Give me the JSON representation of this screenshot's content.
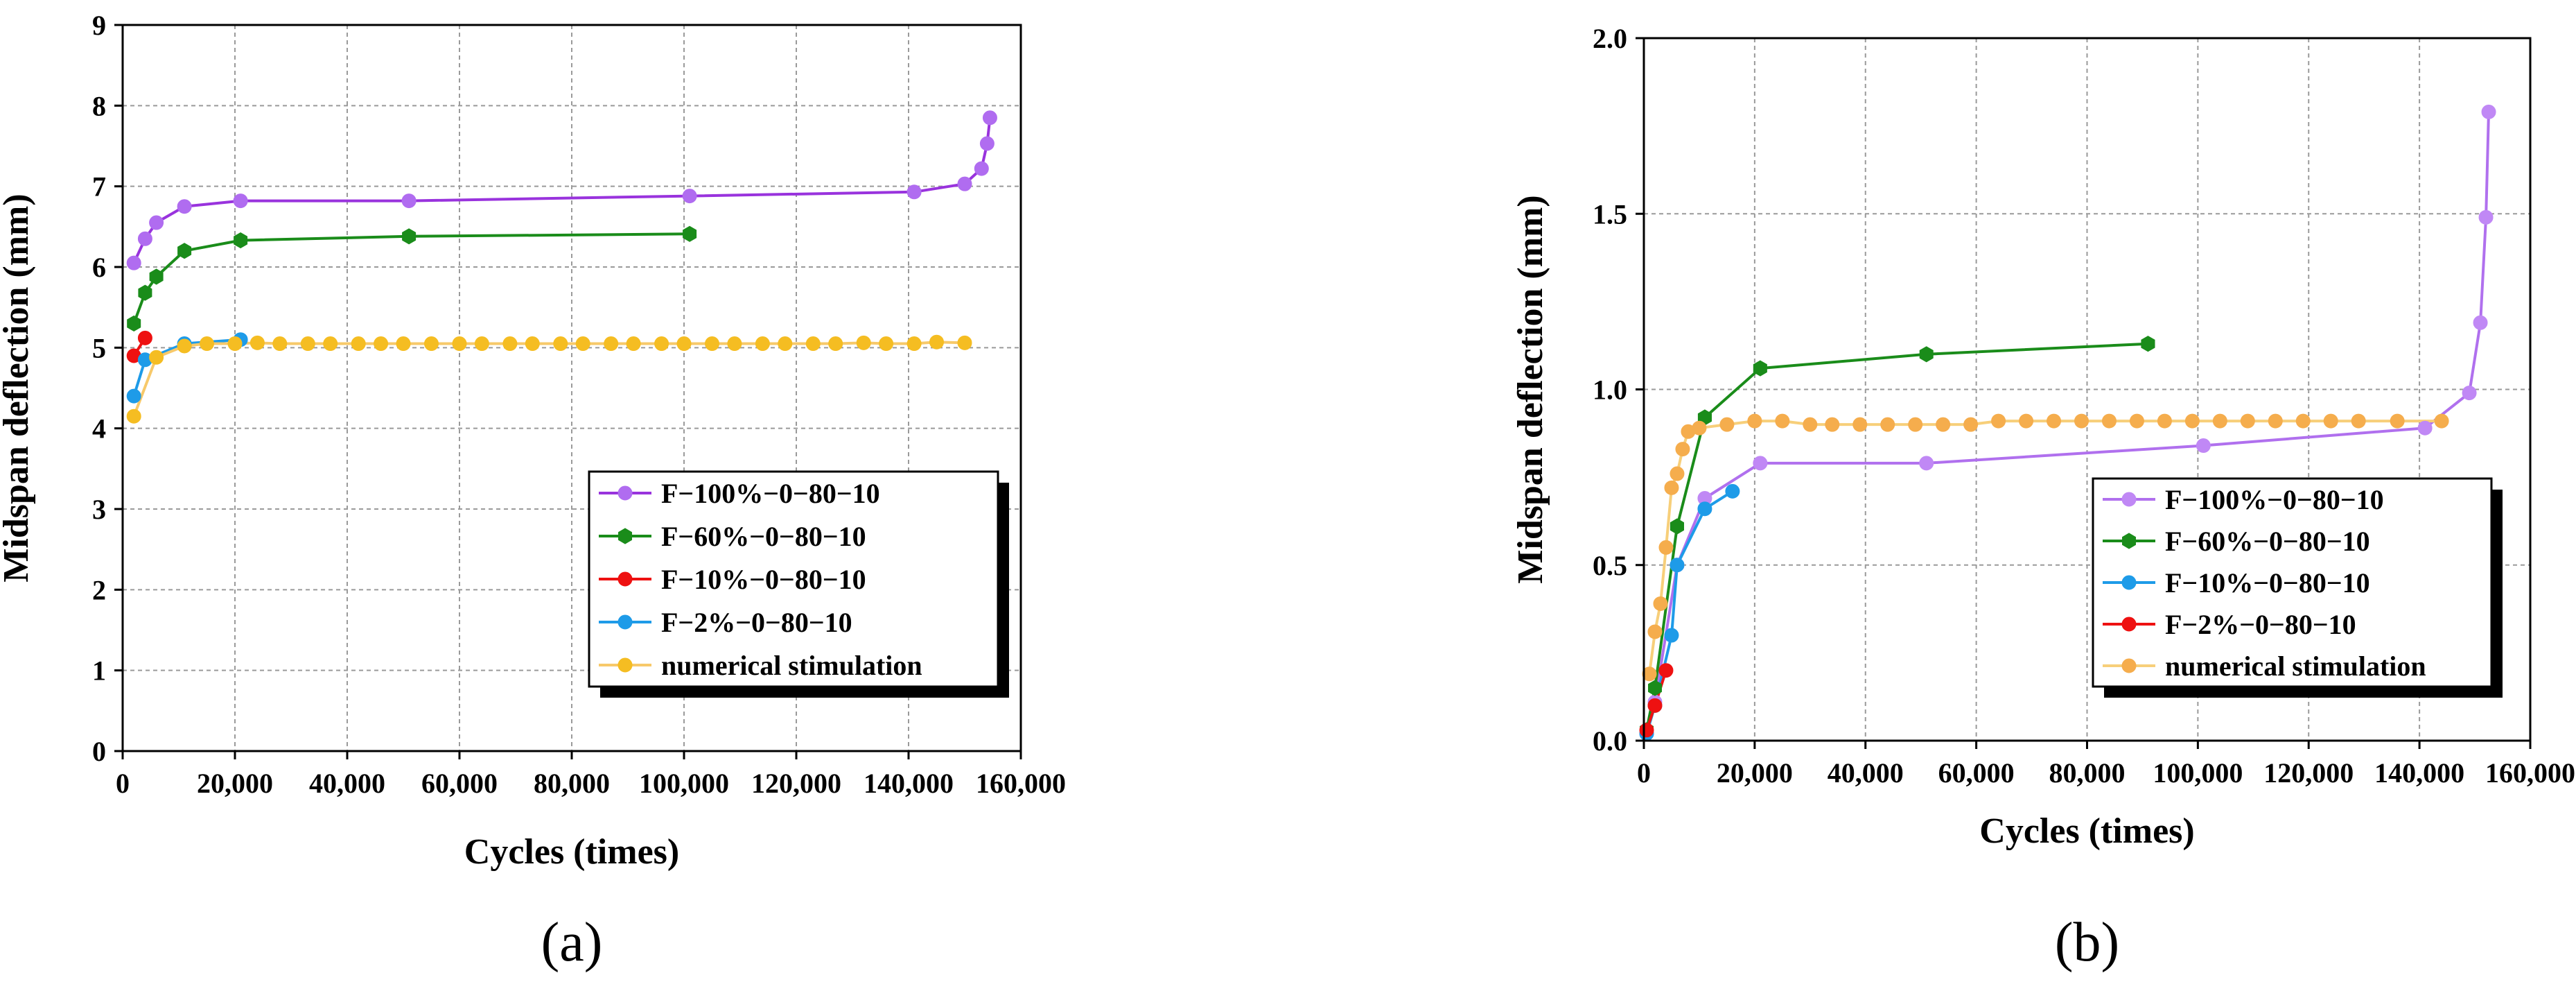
{
  "chart_data": [
    {
      "panel": "a",
      "panel_label": "(a)",
      "type": "line",
      "xlabel": "Cycles (times)",
      "ylabel": "Midspan deflection (mm)",
      "xlim": [
        0,
        160000
      ],
      "ylim": [
        0,
        9
      ],
      "xticks": [
        0,
        20000,
        40000,
        60000,
        80000,
        100000,
        120000,
        140000,
        160000
      ],
      "xtick_labels": [
        "0",
        "20,000",
        "40,000",
        "60,000",
        "80,000",
        "100,000",
        "120,000",
        "140,000",
        "160,000"
      ],
      "yticks": [
        0,
        1,
        2,
        3,
        4,
        5,
        6,
        7,
        8,
        9
      ],
      "ytick_labels": [
        "0",
        "1",
        "2",
        "3",
        "4",
        "5",
        "6",
        "7",
        "8",
        "9"
      ],
      "grid": true,
      "legend_position": "lower-right",
      "series": [
        {
          "name": "F−100%−0−80−10",
          "color": "#b06cf0",
          "line": "#9933dd",
          "marker": "circle",
          "x": [
            2000,
            4000,
            6000,
            11000,
            21000,
            51000,
            101000,
            141000,
            150000,
            153000,
            154000,
            154500
          ],
          "y": [
            6.05,
            6.35,
            6.55,
            6.75,
            6.82,
            6.82,
            6.88,
            6.93,
            7.03,
            7.22,
            7.53,
            7.85
          ]
        },
        {
          "name": "F−60%−0−80−10",
          "color": "#1a8c1a",
          "line": "#1a8c1a",
          "marker": "hexagon",
          "x": [
            2000,
            4000,
            6000,
            11000,
            21000,
            51000,
            101000
          ],
          "y": [
            5.3,
            5.68,
            5.88,
            6.2,
            6.33,
            6.38,
            6.41
          ]
        },
        {
          "name": "F−10%−0−80−10",
          "color": "#ee1111",
          "line": "#ee1111",
          "marker": "circle",
          "x": [
            2000,
            4000
          ],
          "y": [
            4.9,
            5.12
          ]
        },
        {
          "name": "F−2%−0−80−10",
          "color": "#1e9be8",
          "line": "#1e9be8",
          "marker": "circle",
          "x": [
            2000,
            4000,
            11000,
            21000
          ],
          "y": [
            4.4,
            4.85,
            5.05,
            5.1
          ]
        },
        {
          "name": "numerical stimulation",
          "color": "#f5bd22",
          "line": "#f7c96a",
          "marker": "circle",
          "x": [
            2000,
            6000,
            11000,
            15000,
            20000,
            24000,
            28000,
            33000,
            37000,
            42000,
            46000,
            50000,
            55000,
            60000,
            64000,
            69000,
            73000,
            78000,
            82000,
            87000,
            91000,
            96000,
            100000,
            105000,
            109000,
            114000,
            118000,
            123000,
            127000,
            132000,
            136000,
            141000,
            145000,
            150000
          ],
          "y": [
            4.15,
            4.88,
            5.02,
            5.05,
            5.05,
            5.06,
            5.05,
            5.05,
            5.05,
            5.05,
            5.05,
            5.05,
            5.05,
            5.05,
            5.05,
            5.05,
            5.05,
            5.05,
            5.05,
            5.05,
            5.05,
            5.05,
            5.05,
            5.05,
            5.05,
            5.05,
            5.05,
            5.05,
            5.05,
            5.06,
            5.05,
            5.05,
            5.07,
            5.06
          ]
        }
      ]
    },
    {
      "panel": "b",
      "panel_label": "(b)",
      "type": "line",
      "xlabel": "Cycles (times)",
      "ylabel": "Midspan deflection (mm)",
      "xlim": [
        0,
        160000
      ],
      "ylim": [
        0,
        2.0
      ],
      "xticks": [
        0,
        20000,
        40000,
        60000,
        80000,
        100000,
        120000,
        140000,
        160000
      ],
      "xtick_labels": [
        "0",
        "20,000",
        "40,000",
        "60,000",
        "80,000",
        "100,000",
        "120,000",
        "140,000",
        "160,000"
      ],
      "yticks": [
        0,
        0.5,
        1.0,
        1.5,
        2.0
      ],
      "ytick_labels": [
        "0.0",
        "0.5",
        "1.0",
        "1.5",
        "2.0"
      ],
      "grid": true,
      "legend_position": "right",
      "series": [
        {
          "name": "F−100%−0−80−10",
          "color": "#c088f5",
          "line": "#b070ee",
          "marker": "circle",
          "x": [
            500,
            2000,
            6000,
            11000,
            21000,
            51000,
            101000,
            141000,
            149000,
            151000,
            152000,
            152500
          ],
          "y": [
            0.02,
            0.11,
            0.5,
            0.69,
            0.79,
            0.79,
            0.84,
            0.89,
            0.99,
            1.19,
            1.49,
            1.79
          ]
        },
        {
          "name": "F−60%−0−80−10",
          "color": "#1a8c1a",
          "line": "#1a8c1a",
          "marker": "hexagon",
          "x": [
            500,
            2000,
            6000,
            11000,
            21000,
            51000,
            91000
          ],
          "y": [
            0.03,
            0.15,
            0.61,
            0.92,
            1.06,
            1.1,
            1.13
          ]
        },
        {
          "name": "F−10%−0−80−10",
          "color": "#1e9be8",
          "line": "#1e9be8",
          "marker": "circle",
          "x": [
            500,
            2000,
            5000,
            6000,
            11000,
            16000
          ],
          "y": [
            0.02,
            0.1,
            0.3,
            0.5,
            0.66,
            0.71
          ]
        },
        {
          "name": "F−2%−0−80−10",
          "color": "#ee1111",
          "line": "#ee1111",
          "marker": "circle",
          "x": [
            500,
            2000,
            4000
          ],
          "y": [
            0.03,
            0.1,
            0.2
          ]
        },
        {
          "name": "numerical stimulation",
          "color": "#f5ad4d",
          "line": "#f7cf7a",
          "marker": "circle",
          "x": [
            1000,
            2000,
            3000,
            4000,
            5000,
            6000,
            7000,
            8000,
            10000,
            15000,
            20000,
            25000,
            30000,
            34000,
            39000,
            44000,
            49000,
            54000,
            59000,
            64000,
            69000,
            74000,
            79000,
            84000,
            89000,
            94000,
            99000,
            104000,
            109000,
            114000,
            119000,
            124000,
            129000,
            136000,
            144000
          ],
          "y": [
            0.19,
            0.31,
            0.39,
            0.55,
            0.72,
            0.76,
            0.83,
            0.88,
            0.89,
            0.9,
            0.91,
            0.91,
            0.9,
            0.9,
            0.9,
            0.9,
            0.9,
            0.9,
            0.9,
            0.91,
            0.91,
            0.91,
            0.91,
            0.91,
            0.91,
            0.91,
            0.91,
            0.91,
            0.91,
            0.91,
            0.91,
            0.91,
            0.91,
            0.91,
            0.91
          ]
        }
      ]
    }
  ]
}
